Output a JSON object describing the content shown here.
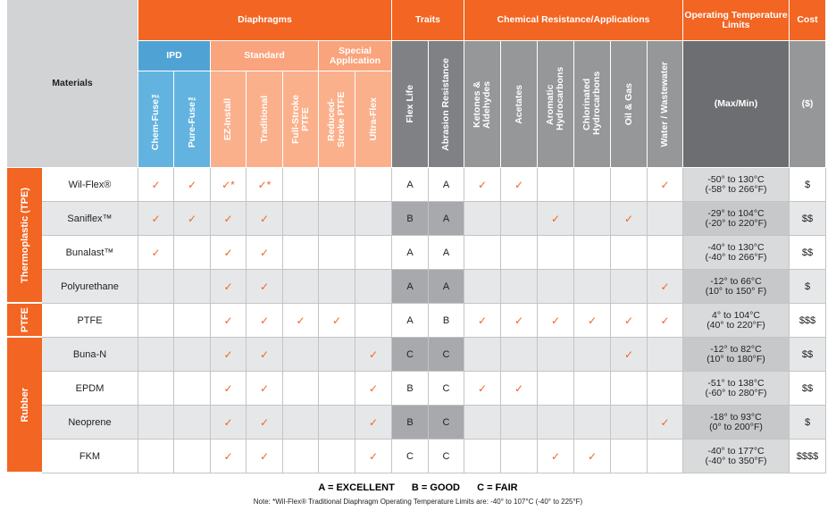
{
  "header": {
    "materials": "Materials",
    "top": [
      "Diaphragms",
      "Traits",
      "Chemical Resistance/Applications",
      "Operating Temperature Limits",
      "Cost"
    ],
    "sub": [
      "IPD",
      "Standard",
      "Special Application"
    ],
    "columns": [
      "Chem-Fuse™",
      "Pure-Fuse™",
      "EZ-Install",
      "Traditional",
      "Full-Stroke PTFE",
      "Reduced-Stroke PTFE",
      "Ultra-Flex",
      "Flex Life",
      "Abrasion Resistance",
      "Ketones & Aldehydes",
      "Acetates",
      "Aromatic Hydrocarbons",
      "Chlorinated Hydrocarbons",
      "Oil & Gas",
      "Water / Wastewater",
      "(Max/Min)",
      "($)"
    ]
  },
  "row_groups": [
    {
      "label": "Thermoplastic (TPE)",
      "rows": [
        {
          "material": "Wil-Flex®",
          "cells": [
            "✓",
            "✓",
            "✓*",
            "✓*",
            null,
            null,
            null,
            "A",
            "A",
            "✓",
            "✓",
            null,
            null,
            null,
            "✓"
          ],
          "temperature": [
            "-50° to 130°C",
            "(-58° to 266°F)"
          ],
          "cost": "$"
        },
        {
          "material": "Saniflex™",
          "cells": [
            "✓",
            "✓",
            "✓",
            "✓",
            null,
            null,
            null,
            "B",
            "A",
            null,
            null,
            "✓",
            null,
            "✓",
            null
          ],
          "temperature": [
            "-29° to 104°C",
            "(-20° to 220°F)"
          ],
          "cost": "$$"
        },
        {
          "material": "Bunalast™",
          "cells": [
            "✓",
            null,
            "✓",
            "✓",
            null,
            null,
            null,
            "A",
            "A",
            null,
            null,
            null,
            null,
            null,
            null
          ],
          "temperature": [
            "-40° to 130°C",
            "(-40° to 266°F)"
          ],
          "cost": "$$"
        },
        {
          "material": "Polyurethane",
          "cells": [
            null,
            null,
            "✓",
            "✓",
            null,
            null,
            null,
            "A",
            "A",
            null,
            null,
            null,
            null,
            null,
            "✓"
          ],
          "temperature": [
            "-12° to 66°C",
            "(10° to 150° F)"
          ],
          "cost": "$"
        }
      ]
    },
    {
      "label": "PTFE",
      "rows": [
        {
          "material": "PTFE",
          "cells": [
            null,
            null,
            "✓",
            "✓",
            "✓",
            "✓",
            null,
            "A",
            "B",
            "✓",
            "✓",
            "✓",
            "✓",
            "✓",
            "✓"
          ],
          "temperature": [
            "4° to 104°C",
            "(40° to 220°F)"
          ],
          "cost": "$$$"
        }
      ]
    },
    {
      "label": "Rubber",
      "rows": [
        {
          "material": "Buna-N",
          "cells": [
            null,
            null,
            "✓",
            "✓",
            null,
            null,
            "✓",
            "C",
            "C",
            null,
            null,
            null,
            null,
            "✓",
            null
          ],
          "temperature": [
            "-12° to 82°C",
            "(10° to 180°F)"
          ],
          "cost": "$$"
        },
        {
          "material": "EPDM",
          "cells": [
            null,
            null,
            "✓",
            "✓",
            null,
            null,
            "✓",
            "B",
            "C",
            "✓",
            "✓",
            null,
            null,
            null,
            null
          ],
          "temperature": [
            "-51° to 138°C",
            "(-60° to 280°F)"
          ],
          "cost": "$$"
        },
        {
          "material": "Neoprene",
          "cells": [
            null,
            null,
            "✓",
            "✓",
            null,
            null,
            "✓",
            "B",
            "C",
            null,
            null,
            null,
            null,
            null,
            "✓"
          ],
          "temperature": [
            "-18° to 93°C",
            "(0° to 200°F)"
          ],
          "cost": "$"
        },
        {
          "material": "FKM",
          "cells": [
            null,
            null,
            "✓",
            "✓",
            null,
            null,
            "✓",
            "C",
            "C",
            null,
            null,
            "✓",
            "✓",
            null,
            null
          ],
          "temperature": [
            "-40° to 177°C",
            "(-40° to 350°F)"
          ],
          "cost": "$$$$"
        }
      ]
    }
  ],
  "legend": [
    "A = EXCELLENT",
    "B = GOOD",
    "C = FAIR"
  ],
  "note": "Note: *Wil-Flex® Traditional Diaphragm Operating Temperature Limits are:  -40° to 107°C (-40° to 225°F)"
}
